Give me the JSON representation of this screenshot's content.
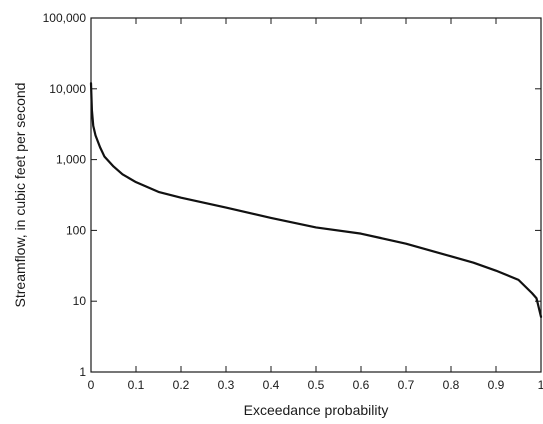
{
  "chart_data": {
    "type": "line",
    "title": "",
    "xlabel": "Exceedance probability",
    "ylabel": "Streamflow, in cubic feet per second",
    "y_scale": "log",
    "xlim": [
      0,
      1
    ],
    "ylim": [
      1,
      100000
    ],
    "grid": false,
    "x_ticks": [
      0,
      0.1,
      0.2,
      0.3,
      0.4,
      0.5,
      0.6,
      0.7,
      0.8,
      0.9,
      1
    ],
    "x_tick_labels": [
      "0",
      "0.1",
      "0.2",
      "0.3",
      "0.4",
      "0.5",
      "0.6",
      "0.7",
      "0.8",
      "0.9",
      "1"
    ],
    "y_ticks": [
      1,
      10,
      100,
      1000,
      10000,
      100000
    ],
    "y_tick_labels": [
      "1",
      "10",
      "100",
      "1,000",
      "10,000",
      "100,000"
    ],
    "series": [
      {
        "color": "#111111",
        "x": [
          0,
          0.002,
          0.005,
          0.01,
          0.02,
          0.03,
          0.05,
          0.07,
          0.1,
          0.15,
          0.2,
          0.3,
          0.4,
          0.5,
          0.6,
          0.7,
          0.8,
          0.85,
          0.9,
          0.95,
          0.98,
          0.99,
          1.0
        ],
        "y": [
          12000,
          5000,
          3000,
          2200,
          1500,
          1100,
          800,
          620,
          480,
          350,
          290,
          210,
          150,
          110,
          90,
          65,
          43,
          35,
          27,
          20,
          13,
          11,
          6
        ]
      }
    ]
  }
}
